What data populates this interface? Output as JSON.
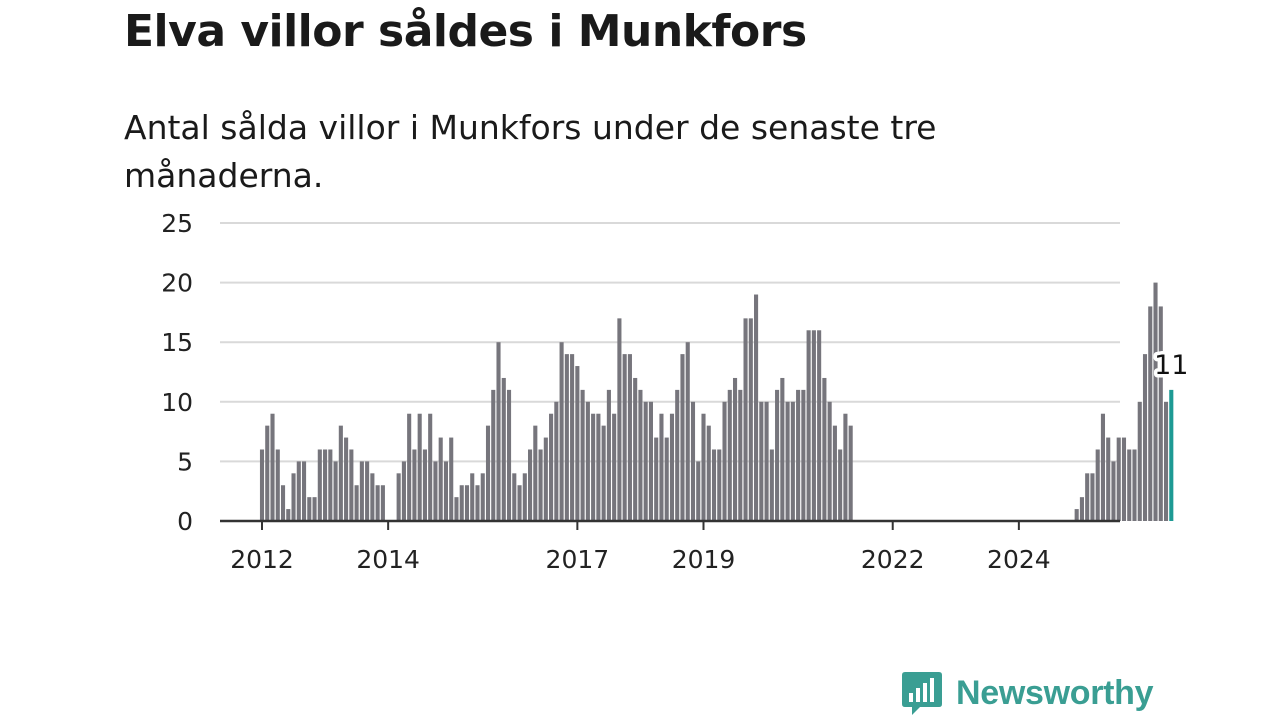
{
  "title": "Elva villor såldes i Munkfors",
  "subtitle": "Antal sålda villor i Munkfors under de senaste tre månaderna.",
  "brand": {
    "name": "Newsworthy"
  },
  "colors": {
    "bar": "#76757c",
    "highlight": "#1d9a94",
    "grid": "#d9d9d9",
    "axis": "#333333",
    "brand": "#3a9e93"
  },
  "chart_data": {
    "type": "bar",
    "title": "Elva villor såldes i Munkfors",
    "subtitle": "Antal sålda villor i Munkfors under de senaste tre månaderna.",
    "x_start": "2012-01",
    "x_ticks": [
      "2012",
      "2014",
      "2017",
      "2019",
      "2022",
      "2024"
    ],
    "ylim": [
      0,
      25
    ],
    "y_ticks": [
      0,
      5,
      10,
      15,
      20,
      25
    ],
    "grid": true,
    "highlight_label": "11",
    "values": [
      6,
      8,
      9,
      6,
      3,
      1,
      4,
      5,
      5,
      2,
      2,
      6,
      6,
      6,
      5,
      8,
      7,
      6,
      3,
      5,
      5,
      4,
      3,
      3,
      0,
      0,
      4,
      5,
      9,
      6,
      9,
      6,
      9,
      5,
      7,
      5,
      7,
      2,
      3,
      3,
      4,
      3,
      4,
      8,
      11,
      15,
      12,
      11,
      4,
      3,
      4,
      6,
      8,
      6,
      7,
      9,
      10,
      15,
      14,
      14,
      13,
      11,
      10,
      9,
      9,
      8,
      11,
      9,
      17,
      14,
      14,
      12,
      11,
      10,
      10,
      7,
      9,
      7,
      9,
      11,
      14,
      15,
      10,
      5,
      9,
      8,
      6,
      6,
      10,
      11,
      12,
      11,
      17,
      17,
      19,
      10,
      10,
      6,
      11,
      12,
      10,
      10,
      11,
      11,
      16,
      16,
      16,
      12,
      10,
      8,
      6,
      9,
      8,
      0,
      0,
      0,
      0,
      0,
      0,
      0,
      0,
      0,
      0,
      0,
      0,
      0,
      0,
      0,
      0,
      0,
      0,
      0,
      0,
      0,
      0,
      0,
      0,
      0,
      0,
      0,
      0,
      0,
      0,
      0,
      0,
      0,
      0,
      0,
      0,
      0,
      0,
      0,
      0,
      0,
      0,
      1,
      2,
      4,
      4,
      6,
      9,
      7,
      5,
      7,
      7,
      6,
      6,
      10,
      14,
      18,
      20,
      18,
      10,
      11
    ]
  }
}
